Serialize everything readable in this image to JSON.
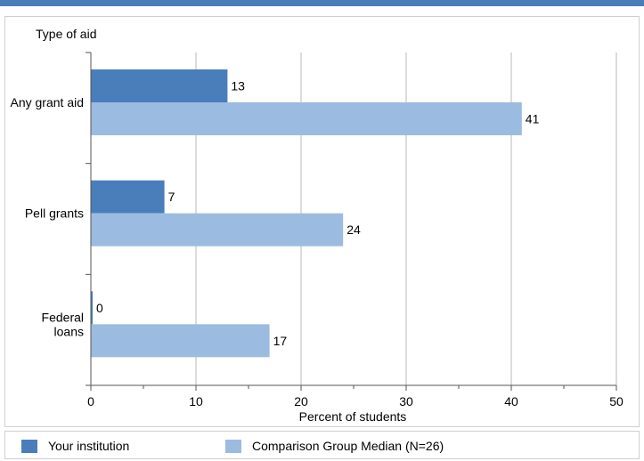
{
  "chart_data": {
    "type": "bar",
    "orientation": "horizontal",
    "categories": [
      "Any grant aid",
      "Pell grants",
      "Federal loans"
    ],
    "series": [
      {
        "name": "Your institution",
        "values": [
          13,
          7,
          0
        ],
        "color": "#4a7ebb"
      },
      {
        "name": "Comparison Group Median (N=26)",
        "values": [
          41,
          24,
          17
        ],
        "color": "#9cbbe0"
      }
    ],
    "y_axis_title": "Type of aid",
    "xlabel": "Percent of students",
    "xlim": [
      0,
      50
    ],
    "x_ticks": [
      0,
      10,
      20,
      30,
      40,
      50
    ],
    "grid": true,
    "legend_position": "bottom"
  }
}
